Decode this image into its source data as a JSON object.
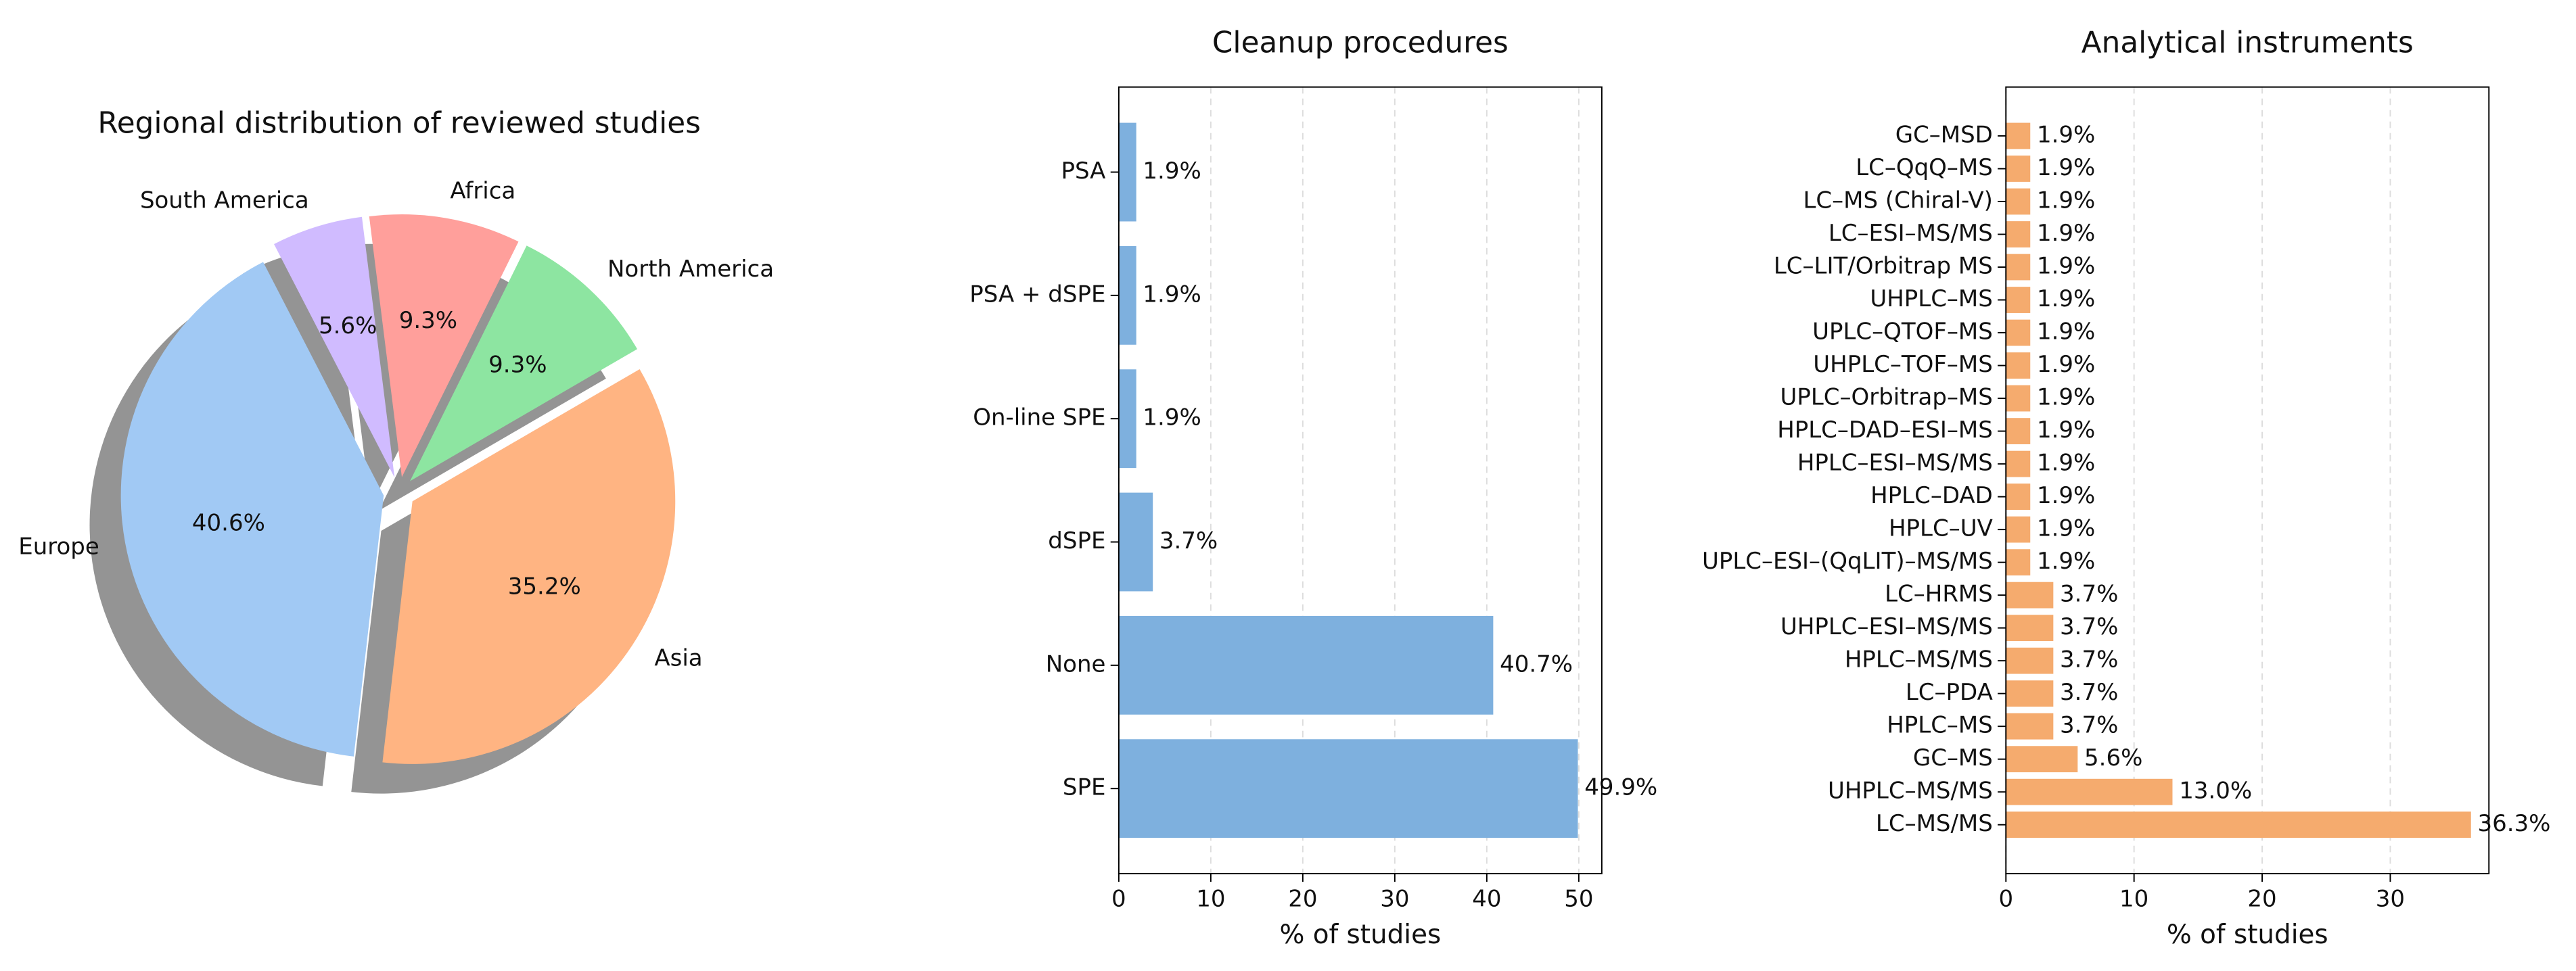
{
  "chart_data": [
    {
      "type": "pie",
      "title": "Regional distribution of reviewed studies",
      "categories": [
        "Europe",
        "Asia",
        "North America",
        "Africa",
        "South America"
      ],
      "values": [
        40.6,
        35.2,
        9.3,
        9.3,
        5.6
      ],
      "value_labels": [
        "40.6%",
        "35.2%",
        "9.3%",
        "9.3%",
        "5.6%"
      ],
      "colors": [
        "#a1c9f4",
        "#ffb482",
        "#8de5a1",
        "#ff9f9b",
        "#d0bbff"
      ],
      "shadow": true
    },
    {
      "type": "barh",
      "title": "Cleanup procedures",
      "xlabel": "% of studies",
      "categories": [
        "SPE",
        "None",
        "dSPE",
        "On-line SPE",
        "PSA + dSPE",
        "PSA"
      ],
      "values": [
        49.9,
        40.7,
        3.7,
        1.9,
        1.9,
        1.9
      ],
      "value_labels": [
        "49.9%",
        "40.7%",
        "3.7%",
        "1.9%",
        "1.9%",
        "1.9%"
      ],
      "color": "#7eb0de",
      "xlim": [
        0,
        52.5
      ],
      "xticks": [
        0,
        10,
        20,
        30,
        40,
        50
      ],
      "grid": true
    },
    {
      "type": "barh",
      "title": "Analytical instruments",
      "xlabel": "% of studies",
      "categories": [
        "LC–MS/MS",
        "UHPLC–MS/MS",
        "GC–MS",
        "HPLC–MS",
        "LC–PDA",
        "HPLC–MS/MS",
        "UHPLC–ESI–MS/MS",
        "LC–HRMS",
        "UPLC–ESI–(QqLIT)–MS/MS",
        "HPLC–UV",
        "HPLC–DAD",
        "HPLC–ESI–MS/MS",
        "HPLC–DAD–ESI–MS",
        "UPLC–Orbitrap–MS",
        "UHPLC–TOF–MS",
        "UPLC–QTOF–MS",
        "UHPLC–MS",
        "LC–LIT/Orbitrap MS",
        "LC–ESI–MS/MS",
        "LC–MS (Chiral-V)",
        "LC–QqQ–MS",
        "GC–MSD"
      ],
      "values": [
        36.3,
        13.0,
        5.6,
        3.7,
        3.7,
        3.7,
        3.7,
        3.7,
        1.9,
        1.9,
        1.9,
        1.9,
        1.9,
        1.9,
        1.9,
        1.9,
        1.9,
        1.9,
        1.9,
        1.9,
        1.9,
        1.9
      ],
      "value_labels": [
        "36.3%",
        "13.0%",
        "5.6%",
        "3.7%",
        "3.7%",
        "3.7%",
        "3.7%",
        "3.7%",
        "1.9%",
        "1.9%",
        "1.9%",
        "1.9%",
        "1.9%",
        "1.9%",
        "1.9%",
        "1.9%",
        "1.9%",
        "1.9%",
        "1.9%",
        "1.9%",
        "1.9%",
        "1.9%"
      ],
      "color": "#f5ab6e",
      "xlim": [
        0,
        37.7
      ],
      "xticks": [
        0,
        10,
        20,
        30
      ],
      "grid": true
    }
  ]
}
